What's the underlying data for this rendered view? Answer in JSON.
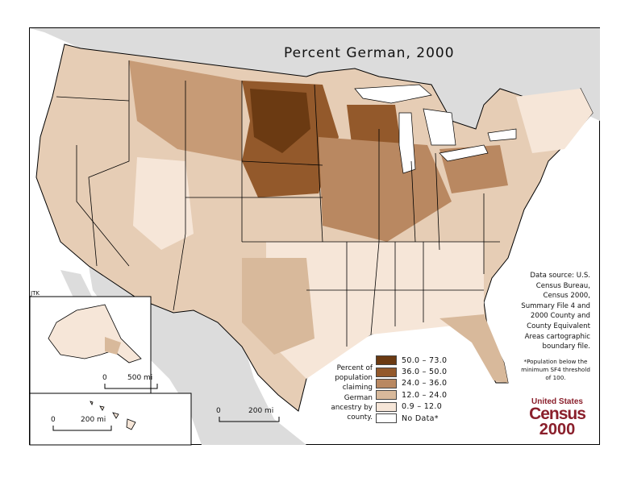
{
  "title": "Percent German, 2000",
  "author_mark": "JTK",
  "source_text": "Data source: U.S. Census Bureau, Census 2000, Summary File 4 and 2000 County and County Equivalent Areas cartographic boundary file.",
  "footnote": "*Population below the minimum SF4 threshold of 100.",
  "legend": {
    "caption": "Percent of population claiming German ancestry by county.",
    "classes": [
      {
        "label": "50.0 – 73.0",
        "color": "#6b3a12"
      },
      {
        "label": "36.0 – 50.0",
        "color": "#93592b"
      },
      {
        "label": "24.0 – 36.0",
        "color": "#b98861"
      },
      {
        "label": "12.0 – 24.0",
        "color": "#d8b99b"
      },
      {
        "label": "0.9 – 12.0",
        "color": "#f6e6d8"
      },
      {
        "label": "No Data*",
        "color": "#ffffff"
      }
    ]
  },
  "scale_bars": {
    "conus": {
      "zero": "0",
      "dist": "200 mi"
    },
    "alaska": {
      "zero": "0",
      "dist": "500 mi"
    },
    "hawaii": {
      "zero": "0",
      "dist": "200 mi"
    }
  },
  "logo": {
    "line1": "United States",
    "line2": "Census",
    "line3": "2000"
  },
  "colors": {
    "ocean": "#ffffff",
    "foreign_land": "#dcdcdc",
    "lakes": "#ffffff",
    "state_border": "#000000",
    "county_border": "#ffffff"
  }
}
